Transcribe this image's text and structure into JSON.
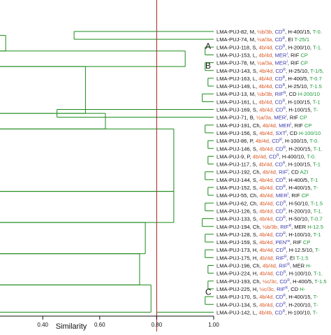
{
  "figure": {
    "axis_label": "Similarity",
    "ticks": [
      "0.40",
      "0.60",
      "0.80",
      "1.00"
    ],
    "clusters": [
      "A",
      "B",
      "C"
    ],
    "colors": {
      "tree": "#1a8a1a",
      "cutoff": "#b03030",
      "name": "#111111",
      "type": "#d9531e",
      "resist": "#3b3bb0",
      "amp": "#111111",
      "tn": "#1f9a3a"
    }
  },
  "chart_data": {
    "type": "dendrogram",
    "x_axis": {
      "label": "Similarity",
      "range": [
        0.25,
        1.0
      ],
      "ticks": [
        0.4,
        0.6,
        0.8,
        1.0
      ]
    },
    "cutoff_similarity": 0.8,
    "leaves": [
      [
        "LMA-PUJ-82,",
        "M,",
        "½b/3b,",
        "CD",
        "R",
        ", H-400/15,",
        "T-0."
      ],
      [
        "LMA-PUJ-74,",
        "M,",
        "½a/3a,",
        "CD",
        "R",
        ", EI",
        "T-25/1"
      ],
      [
        "LMA-PUJ-118,",
        "S,",
        "4b/4d,",
        "CD",
        "R",
        ", H-200/10,",
        "T-1."
      ],
      [
        "LMA-PUJ-153,",
        "L,",
        "4b/4d,",
        "MER",
        "I",
        ", RIF",
        "CP"
      ],
      [
        "LMA-PUJ-78,",
        "M,",
        "½a/3a,",
        "MER",
        "I",
        ", RIF",
        "CP"
      ],
      [
        "LMA-PUJ-143,",
        "S,",
        "4b/4d,",
        "CD",
        "R",
        ", H-25/10,",
        "T-1/5,"
      ],
      [
        "LMA-PUJ-163,",
        "L,",
        "4b/4d,",
        "CD",
        "R",
        ", H-400/5,",
        "T-0.7"
      ],
      [
        "LMA-PUJ-149,",
        "L,",
        "4b/4d,",
        "CD",
        "R",
        ", H-25/10,",
        "T-1.5"
      ],
      [
        "LMA-PUJ-13,",
        "M,",
        "½b/3b,",
        "RIF",
        "R",
        ", CD",
        "H-200/10"
      ],
      [
        "LMA-PUJ-161,",
        "L,",
        "4b/4d,",
        "CD",
        "R",
        ", H-100/15,",
        "T-1"
      ],
      [
        "LMA-PUJ-169,",
        "S,",
        "4b/4d,",
        "CD",
        "R",
        ", H-100/15,",
        "T-"
      ],
      [
        "LMA-PUJ-71,",
        "B,",
        "½a/3a,",
        "MER",
        "I",
        ", RIF",
        "CP"
      ],
      [
        "LMA-PUJ-191,",
        "Ch,",
        "4b/4d,",
        "MER",
        "I",
        ", RIF",
        "CP"
      ],
      [
        "LMA-PUJ-156,",
        "S,",
        "4b/4d,",
        "SXT",
        "I",
        ", CD",
        "H-100/10"
      ],
      [
        "LMA-PUJ-86,",
        "P,",
        "4b/4d,",
        "CD",
        "R",
        ", H-100/15,",
        "T-0."
      ],
      [
        "LMA-PUJ-146,",
        "S,",
        "4b/4d,",
        "CD",
        "R",
        ", H-200/15,",
        "T-1."
      ],
      [
        "LMA-PUJ-9,",
        "P,",
        "4b/4d,",
        "CD",
        "R",
        ", H-400/10,",
        "T-0."
      ],
      [
        "LMA-PUJ-117,",
        "S,",
        "4b/4d,",
        "CD",
        "R",
        ", H-100/15,",
        "T-1"
      ],
      [
        "LMA-PUJ-192,",
        "Ch,",
        "4b/4d,",
        "RIF",
        "I",
        ", CD",
        "AZI"
      ],
      [
        "LMA-PUJ-144,",
        "S,",
        "4b/4d,",
        "CD",
        "R",
        ", H-400/5,",
        "T-1"
      ],
      [
        "LMA-PUJ-152,",
        "S,",
        "4b/4d,",
        "CD",
        "R",
        ", H-400/15,",
        "T-"
      ],
      [
        "LMA-PUJ-55,",
        "Ch,",
        "4b/4d,",
        "MER",
        "I",
        ", RIF",
        "CP"
      ],
      [
        "LMA-PUJ-62,",
        "Ch,",
        "4b/4d,",
        "CD",
        "R",
        ", H-50/10,",
        "T-1.5"
      ],
      [
        "LMA-PUJ-126,",
        "S,",
        "4b/4d,",
        "CD",
        "R",
        ", H-200/10,",
        "T-1."
      ],
      [
        "LMA-PUJ-133,",
        "S,",
        "4b/4d,",
        "CD",
        "R",
        ", H-50/10,",
        "T-0.7"
      ],
      [
        "LMA-PUJ-194,",
        "Ch,",
        "½b/3b,",
        "RIF",
        "R",
        ", MER",
        "H-12.5"
      ],
      [
        "LMA-PUJ-128,",
        "S,",
        "4b/4d,",
        "CD",
        "R",
        ", H-100/10,",
        "T-1"
      ],
      [
        "LMA-PUJ-159,",
        "S,",
        "4b/4d,",
        "PEN",
        "ns",
        ", RIF",
        "CP"
      ],
      [
        "LMA-PUJ-173,",
        "H,",
        "4b/4d,",
        "CD",
        "R",
        ", H-12.5/10,",
        "T-"
      ],
      [
        "LMA-PUJ-175,",
        "H,",
        "4b/4d,",
        "RIF",
        "R",
        ", EI",
        "T-1.5"
      ],
      [
        "LMA-PUJ-196,",
        "Ch,",
        "4b/4d,",
        "RIF",
        "R",
        ", MER",
        "H-"
      ],
      [
        "LMA-PUJ-224,",
        "H,",
        "4b/4d,",
        "CD",
        "R",
        ", H-100/10,",
        "T-1."
      ],
      [
        "LMA-PUJ-193,",
        "Ch,",
        "½c/3c,",
        "CD",
        "R",
        ", H-400/5,",
        "T-1.5"
      ],
      [
        "LMA-PUJ-225,",
        "H,",
        "½c/3c,",
        "RIF",
        "R",
        ", CD",
        "H-"
      ],
      [
        "LMA-PUJ-170,",
        "S,",
        "4b/4d,",
        "CD",
        "R",
        ", H-400/15,",
        "T-"
      ],
      [
        "LMA-PUJ-134,",
        "S,",
        "4b/4d,",
        "CD",
        "R",
        ", H-200/10,",
        "T-"
      ],
      [
        "LMA-PUJ-142,",
        "L,",
        "4b/4b,",
        "CD",
        "R",
        ", H-100/10,",
        "T-"
      ]
    ],
    "merges": [
      {
        "left": 0,
        "right": 1,
        "similarity": 0.51
      },
      {
        "left": 2,
        "right": 3,
        "similarity": 0.97
      },
      {
        "left": 4,
        "right": 5,
        "similarity": 0.97
      },
      {
        "left": 6,
        "right": 7,
        "similarity": 0.98
      },
      {
        "left": 8,
        "right": 9,
        "similarity": 0.96
      },
      {
        "left": 10,
        "right": 11,
        "similarity": 0.45
      },
      {
        "left": 12,
        "right": 13,
        "similarity": 0.97
      },
      {
        "left": 14,
        "right": 15,
        "similarity": 0.98
      },
      {
        "left": 16,
        "right": 17,
        "similarity": 0.98
      },
      {
        "left": 18,
        "right": 19,
        "similarity": 0.97
      },
      {
        "left": 20,
        "right": 21,
        "similarity": 0.98
      },
      {
        "left": 22,
        "right": 23,
        "similarity": 0.97
      },
      {
        "left": 24,
        "right": 25,
        "similarity": 0.96
      },
      {
        "left": 26,
        "right": 27,
        "similarity": 0.97
      },
      {
        "left": 28,
        "right": 29,
        "similarity": 0.97
      },
      {
        "left": 30,
        "right": 31,
        "similarity": 0.98
      },
      {
        "left": 32,
        "right": 33,
        "similarity": 0.98
      },
      {
        "left": 34,
        "right": 35,
        "similarity": 0.97
      }
    ],
    "branch_positions": [
      {
        "leaf_from": 0,
        "leaf_to": 2,
        "similarity": 0.27
      },
      {
        "leaf_from": 2,
        "leaf_to": 4,
        "similarity": 0.9
      },
      {
        "leaf_from": 4,
        "leaf_to": 10,
        "similarity": 0.55
      },
      {
        "leaf_from": 10,
        "leaf_to": 12,
        "similarity": 0.62
      },
      {
        "leaf_from": 12,
        "leaf_to": 20,
        "similarity": 0.86
      },
      {
        "leaf_from": 20,
        "leaf_to": 24,
        "similarity": 0.86
      },
      {
        "leaf_from": 24,
        "leaf_to": 28,
        "similarity": 0.76
      },
      {
        "leaf_from": 28,
        "leaf_to": 32,
        "similarity": 0.74
      },
      {
        "leaf_from": 32,
        "leaf_to": 36,
        "similarity": 0.78
      }
    ]
  }
}
